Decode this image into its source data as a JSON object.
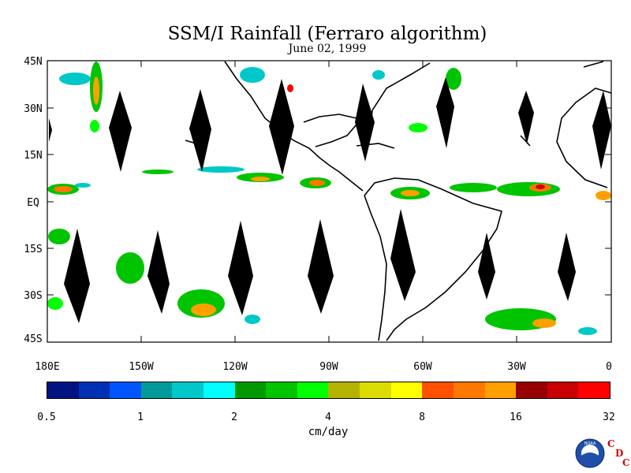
{
  "title": "SSM/I Rainfall (Ferraro algorithm)",
  "date": "June 02, 1999",
  "lat_labels": [
    "45N",
    "30N",
    "15N",
    "EQ",
    "15S",
    "30S",
    "45S"
  ],
  "lon_labels": [
    "180E",
    "150W",
    "120W",
    "90W",
    "60W",
    "30W",
    "0"
  ],
  "colorbar": {
    "colors": [
      "#00137f",
      "#0030b4",
      "#0055ff",
      "#009a9a",
      "#00c8c8",
      "#00ffff",
      "#009a00",
      "#00c400",
      "#00ff00",
      "#b4b400",
      "#dcdc00",
      "#ffff00",
      "#ff5000",
      "#ff7800",
      "#ffa000",
      "#960000",
      "#c80000",
      "#ff0000"
    ],
    "labels": [
      "0.5",
      "1",
      "2",
      "4",
      "8",
      "16",
      "32"
    ],
    "units": "cm/day"
  },
  "logo": {
    "agency_text": "NOAA",
    "center_letters": [
      "C",
      "D",
      "C"
    ]
  }
}
